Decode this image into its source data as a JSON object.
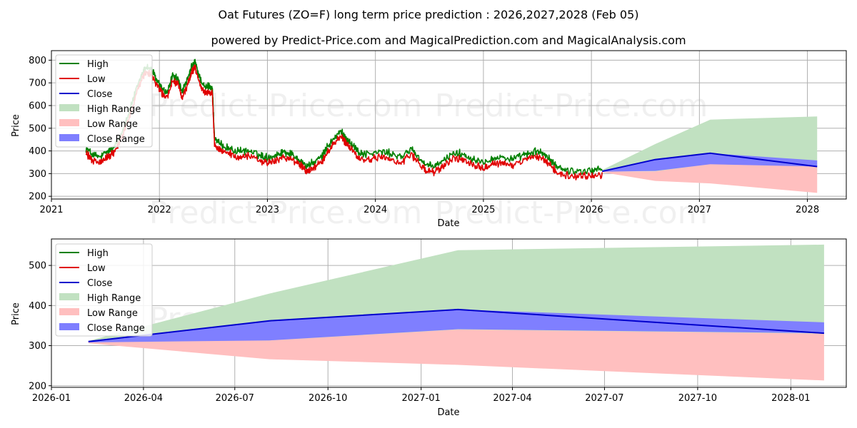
{
  "chart_data": {
    "title": "Oat Futures (ZO=F) long term price prediction : 2026,2027,2028 (Feb 05)",
    "subtitle": "powered by Predict-Price.com and MagicalPrediction.com and MagicalAnalysis.com",
    "watermark": "Predict-Price.com",
    "colors": {
      "high": "#008000",
      "low": "#e00000",
      "close": "#0000cc",
      "high_range": "#c1e1c1",
      "low_range": "#ffbfbf",
      "close_range": "#7f7fff"
    },
    "legend": [
      "High",
      "Low",
      "Close",
      "High Range",
      "Low Range",
      "Close Range"
    ],
    "legend_position": "top-left",
    "charts": [
      {
        "type": "line",
        "xlabel": "Date",
        "ylabel": "Price",
        "xlim": [
          2021.0,
          2028.36
        ],
        "ylim": [
          188,
          842
        ],
        "x_ticks": [
          2021,
          2022,
          2023,
          2024,
          2025,
          2026,
          2027,
          2028
        ],
        "x_tick_labels": [
          "2021",
          "2022",
          "2023",
          "2024",
          "2025",
          "2026",
          "2027",
          "2028"
        ],
        "y_ticks": [
          200,
          300,
          400,
          500,
          600,
          700,
          800
        ],
        "grid": true,
        "history_anchors": [
          [
            2021.32,
            400
          ],
          [
            2021.38,
            372
          ],
          [
            2021.45,
            360
          ],
          [
            2021.52,
            385
          ],
          [
            2021.58,
            400
          ],
          [
            2021.65,
            470
          ],
          [
            2021.72,
            560
          ],
          [
            2021.78,
            650
          ],
          [
            2021.84,
            730
          ],
          [
            2021.88,
            760
          ],
          [
            2021.93,
            745
          ],
          [
            2021.97,
            705
          ],
          [
            2022.02,
            665
          ],
          [
            2022.07,
            640
          ],
          [
            2022.12,
            720
          ],
          [
            2022.17,
            705
          ],
          [
            2022.21,
            650
          ],
          [
            2022.26,
            700
          ],
          [
            2022.3,
            760
          ],
          [
            2022.33,
            780
          ],
          [
            2022.37,
            715
          ],
          [
            2022.42,
            665
          ],
          [
            2022.46,
            675
          ],
          [
            2022.49,
            665
          ],
          [
            2022.51,
            445
          ],
          [
            2022.55,
            420
          ],
          [
            2022.62,
            405
          ],
          [
            2022.72,
            385
          ],
          [
            2022.82,
            390
          ],
          [
            2022.92,
            370
          ],
          [
            2023.0,
            360
          ],
          [
            2023.08,
            370
          ],
          [
            2023.15,
            385
          ],
          [
            2023.22,
            375
          ],
          [
            2023.3,
            350
          ],
          [
            2023.36,
            320
          ],
          [
            2023.42,
            335
          ],
          [
            2023.5,
            360
          ],
          [
            2023.56,
            410
          ],
          [
            2023.62,
            445
          ],
          [
            2023.68,
            475
          ],
          [
            2023.72,
            450
          ],
          [
            2023.78,
            420
          ],
          [
            2023.85,
            380
          ],
          [
            2023.95,
            375
          ],
          [
            2024.05,
            385
          ],
          [
            2024.15,
            375
          ],
          [
            2024.25,
            360
          ],
          [
            2024.33,
            400
          ],
          [
            2024.4,
            360
          ],
          [
            2024.48,
            320
          ],
          [
            2024.55,
            322
          ],
          [
            2024.62,
            340
          ],
          [
            2024.72,
            380
          ],
          [
            2024.8,
            375
          ],
          [
            2024.9,
            355
          ],
          [
            2025.0,
            340
          ],
          [
            2025.08,
            355
          ],
          [
            2025.18,
            360
          ],
          [
            2025.28,
            350
          ],
          [
            2025.38,
            370
          ],
          [
            2025.48,
            385
          ],
          [
            2025.55,
            380
          ],
          [
            2025.62,
            345
          ],
          [
            2025.7,
            315
          ],
          [
            2025.8,
            300
          ],
          [
            2025.9,
            300
          ],
          [
            2026.0,
            302
          ],
          [
            2026.1,
            310
          ]
        ],
        "forecast": {
          "x": [
            2026.1,
            2026.59,
            2027.1,
            2028.09
          ],
          "close": [
            310,
            362,
            390,
            331
          ],
          "high_range": [
            [
              310,
              316
            ],
            [
              310,
              430
            ],
            [
              310,
              538
            ],
            [
              310,
              552
            ]
          ],
          "low_range": [
            [
              306,
              310
            ],
            [
              268,
              310
            ],
            [
              257,
              342
            ],
            [
              215,
              332
            ]
          ],
          "close_range": [
            [
              308,
              314
            ],
            [
              312,
              362
            ],
            [
              341,
              390
            ],
            [
              331,
              358
            ]
          ]
        }
      },
      {
        "type": "line",
        "xlabel": "Date",
        "ylabel": "Price",
        "xlim": [
          2026.0,
          2028.15
        ],
        "ylim": [
          196,
          566
        ],
        "x_ticks": [
          2026.0,
          2026.249,
          2026.496,
          2026.748,
          2027.0,
          2027.247,
          2027.496,
          2027.748,
          2028.0
        ],
        "x_tick_labels": [
          "2026-01",
          "2026-04",
          "2026-07",
          "2026-10",
          "2027-01",
          "2027-04",
          "2027-07",
          "2027-10",
          "2028-01"
        ],
        "y_ticks": [
          200,
          300,
          400,
          500
        ],
        "grid": true,
        "forecast": {
          "x": [
            2026.1,
            2026.59,
            2027.1,
            2028.09
          ],
          "close": [
            310,
            362,
            390,
            331
          ],
          "high_range": [
            [
              310,
              312
            ],
            [
              310,
              430
            ],
            [
              310,
              538
            ],
            [
              310,
              552
            ]
          ],
          "low_range": [
            [
              306,
              310
            ],
            [
              266,
              313
            ],
            [
              252,
              340
            ],
            [
              213,
              330
            ]
          ],
          "close_range": [
            [
              308,
              312
            ],
            [
              313,
              362
            ],
            [
              341,
              390
            ],
            [
              331,
              358
            ]
          ]
        }
      }
    ]
  }
}
